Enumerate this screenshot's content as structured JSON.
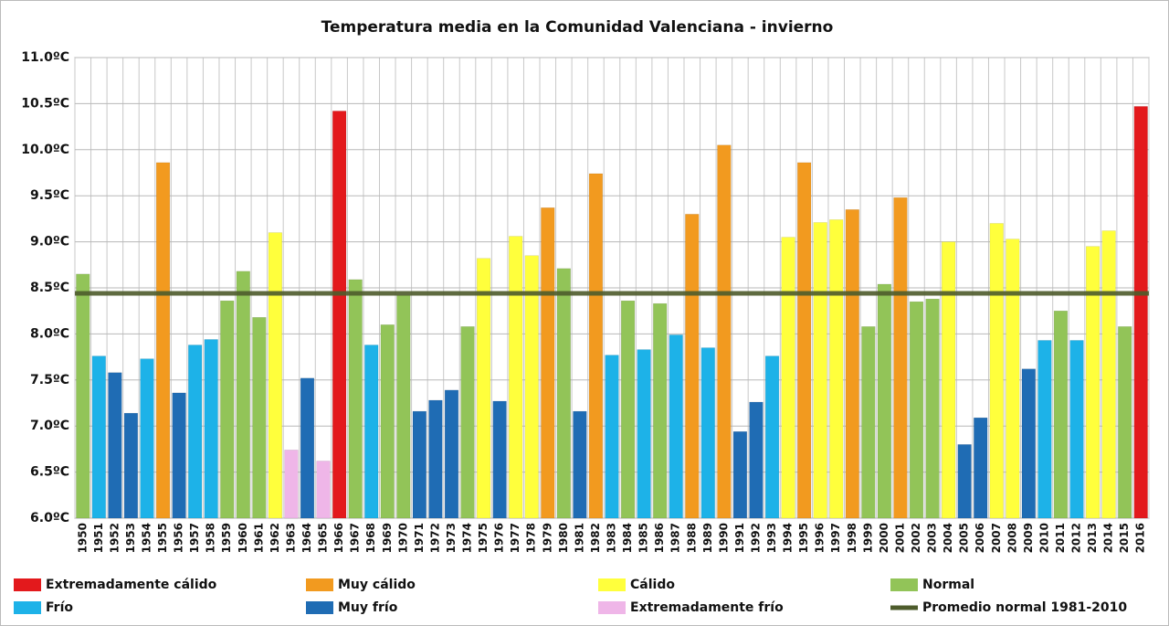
{
  "chart_data": {
    "type": "bar",
    "title": "Temperatura media en la Comunidad Valenciana - invierno",
    "categories": [
      "1950",
      "1951",
      "1952",
      "1953",
      "1954",
      "1955",
      "1956",
      "1957",
      "1958",
      "1959",
      "1960",
      "1961",
      "1962",
      "1963",
      "1964",
      "1965",
      "1966",
      "1967",
      "1968",
      "1969",
      "1970",
      "1971",
      "1972",
      "1973",
      "1974",
      "1975",
      "1976",
      "1977",
      "1978",
      "1979",
      "1980",
      "1981",
      "1982",
      "1983",
      "1984",
      "1985",
      "1986",
      "1987",
      "1988",
      "1989",
      "1990",
      "1991",
      "1992",
      "1993",
      "1994",
      "1995",
      "1996",
      "1997",
      "1998",
      "1999",
      "2000",
      "2001",
      "2002",
      "2003",
      "2004",
      "2005",
      "2006",
      "2007",
      "2008",
      "2009",
      "2010",
      "2011",
      "2012",
      "2013",
      "2014",
      "2015",
      "2016"
    ],
    "series": [
      {
        "name": "Extremadamente cálido",
        "color": "#e3191c",
        "values": [
          null,
          null,
          null,
          null,
          null,
          null,
          null,
          null,
          null,
          null,
          null,
          null,
          null,
          null,
          null,
          null,
          10.42,
          null,
          null,
          null,
          null,
          null,
          null,
          null,
          null,
          null,
          null,
          null,
          null,
          null,
          null,
          null,
          null,
          null,
          null,
          null,
          null,
          null,
          null,
          null,
          null,
          null,
          null,
          null,
          null,
          null,
          null,
          null,
          null,
          null,
          null,
          null,
          null,
          null,
          null,
          null,
          null,
          null,
          null,
          null,
          null,
          null,
          null,
          null,
          null,
          null,
          10.47
        ]
      },
      {
        "name": "Muy cálido",
        "color": "#f29a1f",
        "values": [
          null,
          null,
          null,
          null,
          null,
          9.86,
          null,
          null,
          null,
          null,
          null,
          null,
          null,
          null,
          null,
          null,
          null,
          null,
          null,
          null,
          null,
          null,
          null,
          null,
          null,
          null,
          null,
          null,
          null,
          9.37,
          null,
          null,
          9.74,
          null,
          null,
          null,
          null,
          null,
          9.3,
          null,
          10.05,
          null,
          null,
          null,
          null,
          9.86,
          null,
          null,
          9.35,
          null,
          null,
          9.48,
          null,
          null,
          null,
          null,
          null,
          null,
          null,
          null,
          null,
          null,
          null,
          null,
          null,
          null,
          null
        ]
      },
      {
        "name": "Cálido",
        "color": "#ffff3c",
        "values": [
          null,
          null,
          null,
          null,
          null,
          null,
          null,
          null,
          null,
          null,
          null,
          null,
          9.1,
          null,
          null,
          null,
          null,
          null,
          null,
          null,
          null,
          null,
          null,
          null,
          null,
          8.82,
          null,
          9.06,
          8.85,
          null,
          null,
          null,
          null,
          null,
          null,
          null,
          null,
          null,
          null,
          null,
          null,
          null,
          null,
          null,
          9.05,
          null,
          9.21,
          9.24,
          null,
          null,
          null,
          null,
          null,
          null,
          9.0,
          null,
          null,
          9.2,
          9.03,
          null,
          null,
          null,
          null,
          8.95,
          9.12,
          null,
          null
        ]
      },
      {
        "name": "Normal",
        "color": "#92c458",
        "values": [
          8.65,
          null,
          null,
          null,
          null,
          null,
          null,
          null,
          null,
          8.36,
          8.68,
          8.18,
          null,
          null,
          null,
          null,
          null,
          8.59,
          null,
          8.1,
          8.42,
          null,
          null,
          null,
          8.08,
          null,
          null,
          null,
          null,
          null,
          8.71,
          null,
          null,
          null,
          8.36,
          null,
          8.33,
          null,
          null,
          null,
          null,
          null,
          null,
          null,
          null,
          null,
          null,
          null,
          null,
          8.08,
          8.54,
          null,
          8.35,
          8.38,
          null,
          null,
          null,
          null,
          null,
          null,
          null,
          8.25,
          null,
          null,
          null,
          8.08,
          null
        ]
      },
      {
        "name": "Frío",
        "color": "#1db2e8",
        "values": [
          null,
          7.76,
          null,
          null,
          7.73,
          null,
          null,
          7.88,
          7.94,
          null,
          null,
          null,
          null,
          null,
          null,
          null,
          null,
          null,
          7.88,
          null,
          null,
          null,
          null,
          null,
          null,
          null,
          null,
          null,
          null,
          null,
          null,
          null,
          null,
          7.77,
          null,
          7.83,
          null,
          7.99,
          null,
          7.85,
          null,
          null,
          null,
          7.76,
          null,
          null,
          null,
          null,
          null,
          null,
          null,
          null,
          null,
          null,
          null,
          null,
          null,
          null,
          null,
          null,
          7.93,
          null,
          7.93,
          null,
          null,
          null,
          null
        ]
      },
      {
        "name": "Muy frío",
        "color": "#1f6cb4",
        "values": [
          null,
          null,
          7.58,
          7.14,
          null,
          null,
          7.36,
          null,
          null,
          null,
          null,
          null,
          null,
          null,
          7.52,
          null,
          null,
          null,
          null,
          null,
          null,
          7.16,
          7.28,
          7.39,
          null,
          null,
          7.27,
          null,
          null,
          null,
          null,
          7.16,
          null,
          null,
          null,
          null,
          null,
          null,
          null,
          null,
          null,
          6.94,
          7.26,
          null,
          null,
          null,
          null,
          null,
          null,
          null,
          null,
          null,
          null,
          null,
          null,
          6.8,
          7.09,
          null,
          null,
          7.62,
          null,
          null,
          null,
          null,
          null,
          null,
          null
        ]
      },
      {
        "name": "Extremadamente frío",
        "color": "#efb6e8",
        "values": [
          null,
          null,
          null,
          null,
          null,
          null,
          null,
          null,
          null,
          null,
          null,
          null,
          null,
          6.74,
          null,
          6.62,
          null,
          null,
          null,
          null,
          null,
          null,
          null,
          null,
          null,
          null,
          null,
          null,
          null,
          null,
          null,
          null,
          null,
          null,
          null,
          null,
          null,
          null,
          null,
          null,
          null,
          null,
          null,
          null,
          null,
          null,
          null,
          null,
          null,
          null,
          null,
          null,
          null,
          null,
          null,
          null,
          null,
          null,
          null,
          null,
          null,
          null,
          null,
          null,
          null,
          null,
          null
        ]
      }
    ],
    "reference_line": {
      "name": "Promedio normal 1981-2010",
      "value": 8.44,
      "color": "#4e5c2c"
    },
    "ylim": [
      6.0,
      11.0
    ],
    "yticks": [
      {
        "value": 6.0,
        "label": "6.0ºC"
      },
      {
        "value": 6.5,
        "label": "6.5ºC"
      },
      {
        "value": 7.0,
        "label": "7.0ºC"
      },
      {
        "value": 7.5,
        "label": "7.5ºC"
      },
      {
        "value": 8.0,
        "label": "8.0ºC"
      },
      {
        "value": 8.5,
        "label": "8.5ºC"
      },
      {
        "value": 9.0,
        "label": "9.0ºC"
      },
      {
        "value": 9.5,
        "label": "9.5ºC"
      },
      {
        "value": 10.0,
        "label": "10.0ºC"
      },
      {
        "value": 10.5,
        "label": "10.5ºC"
      },
      {
        "value": 11.0,
        "label": "11.0ºC"
      }
    ],
    "grid": true
  }
}
